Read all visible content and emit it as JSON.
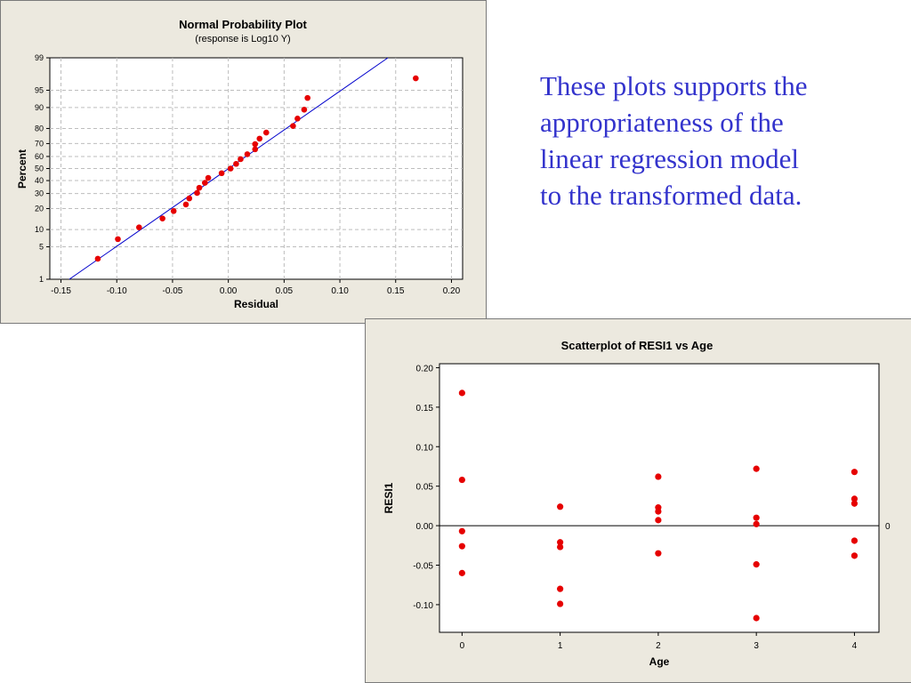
{
  "annotation": {
    "text": "These plots supports the appropriateness of the linear regression model to the transformed data."
  },
  "chart_data": [
    {
      "type": "scatter",
      "title": "Normal Probability Plot",
      "subtitle": "(response is Log10 Y)",
      "xlabel": "Residual",
      "ylabel": "Percent",
      "xlim": [
        -0.16,
        0.21
      ],
      "ylim": [
        1,
        99
      ],
      "y_scale": "normal-probability",
      "grid": true,
      "x_ticks": [
        -0.15,
        -0.1,
        -0.05,
        0.0,
        0.05,
        0.1,
        0.15,
        0.2
      ],
      "x_tick_labels": [
        "-0.15",
        "-0.10",
        "-0.05",
        "0.00",
        "0.05",
        "0.10",
        "0.15",
        "0.20"
      ],
      "y_ticks": [
        1,
        5,
        10,
        20,
        30,
        40,
        50,
        60,
        70,
        80,
        90,
        95,
        99
      ],
      "y_tick_labels": [
        "1",
        "5",
        "10",
        "20",
        "30",
        "40",
        "50",
        "60",
        "70",
        "80",
        "90",
        "95",
        "99"
      ],
      "fit_line": {
        "color": "#0000cc",
        "points": [
          [
            -0.1425,
            1
          ],
          [
            0.143,
            99
          ]
        ]
      },
      "marker_color": "#e60000",
      "points": [
        [
          -0.117,
          2.9
        ],
        [
          -0.099,
          6.9
        ],
        [
          -0.08,
          10.8
        ],
        [
          -0.059,
          14.7
        ],
        [
          -0.049,
          18.6
        ],
        [
          -0.038,
          22.5
        ],
        [
          -0.035,
          26.5
        ],
        [
          -0.028,
          30.4
        ],
        [
          -0.026,
          34.3
        ],
        [
          -0.021,
          38.2
        ],
        [
          -0.018,
          42.2
        ],
        [
          -0.006,
          46.1
        ],
        [
          0.002,
          50.0
        ],
        [
          0.007,
          53.9
        ],
        [
          0.011,
          57.8
        ],
        [
          0.017,
          61.8
        ],
        [
          0.024,
          65.7
        ],
        [
          0.024,
          69.6
        ],
        [
          0.028,
          73.5
        ],
        [
          0.034,
          77.5
        ],
        [
          0.058,
          81.4
        ],
        [
          0.062,
          85.3
        ],
        [
          0.068,
          89.2
        ],
        [
          0.071,
          93.1
        ],
        [
          0.168,
          97.1
        ]
      ]
    },
    {
      "type": "scatter",
      "title": "Scatterplot of RESI1 vs Age",
      "xlabel": "Age",
      "ylabel": "RESI1",
      "xlim": [
        -0.23,
        4.25
      ],
      "ylim": [
        -0.135,
        0.205
      ],
      "grid": false,
      "x_ticks": [
        0,
        1,
        2,
        3,
        4
      ],
      "x_tick_labels": [
        "0",
        "1",
        "2",
        "3",
        "4"
      ],
      "y_ticks": [
        -0.1,
        -0.05,
        0.0,
        0.05,
        0.1,
        0.15,
        0.2
      ],
      "y_tick_labels": [
        "-0.10",
        "-0.05",
        "0.00",
        "0.05",
        "0.10",
        "0.15",
        "0.20"
      ],
      "reference_line": {
        "y": 0,
        "label": "0"
      },
      "marker_color": "#e60000",
      "points": [
        [
          0,
          0.168
        ],
        [
          0,
          0.058
        ],
        [
          0,
          -0.007
        ],
        [
          0,
          -0.026
        ],
        [
          0,
          -0.06
        ],
        [
          1,
          0.024
        ],
        [
          1,
          -0.021
        ],
        [
          1,
          -0.027
        ],
        [
          1,
          -0.08
        ],
        [
          1,
          -0.099
        ],
        [
          2,
          0.062
        ],
        [
          2,
          0.023
        ],
        [
          2,
          0.018
        ],
        [
          2,
          0.007
        ],
        [
          2,
          -0.035
        ],
        [
          3,
          0.072
        ],
        [
          3,
          0.01
        ],
        [
          3,
          0.002
        ],
        [
          3,
          -0.049
        ],
        [
          3,
          -0.117
        ],
        [
          4,
          0.068
        ],
        [
          4,
          0.034
        ],
        [
          4,
          0.028
        ],
        [
          4,
          -0.019
        ],
        [
          4,
          -0.038
        ]
      ]
    }
  ]
}
